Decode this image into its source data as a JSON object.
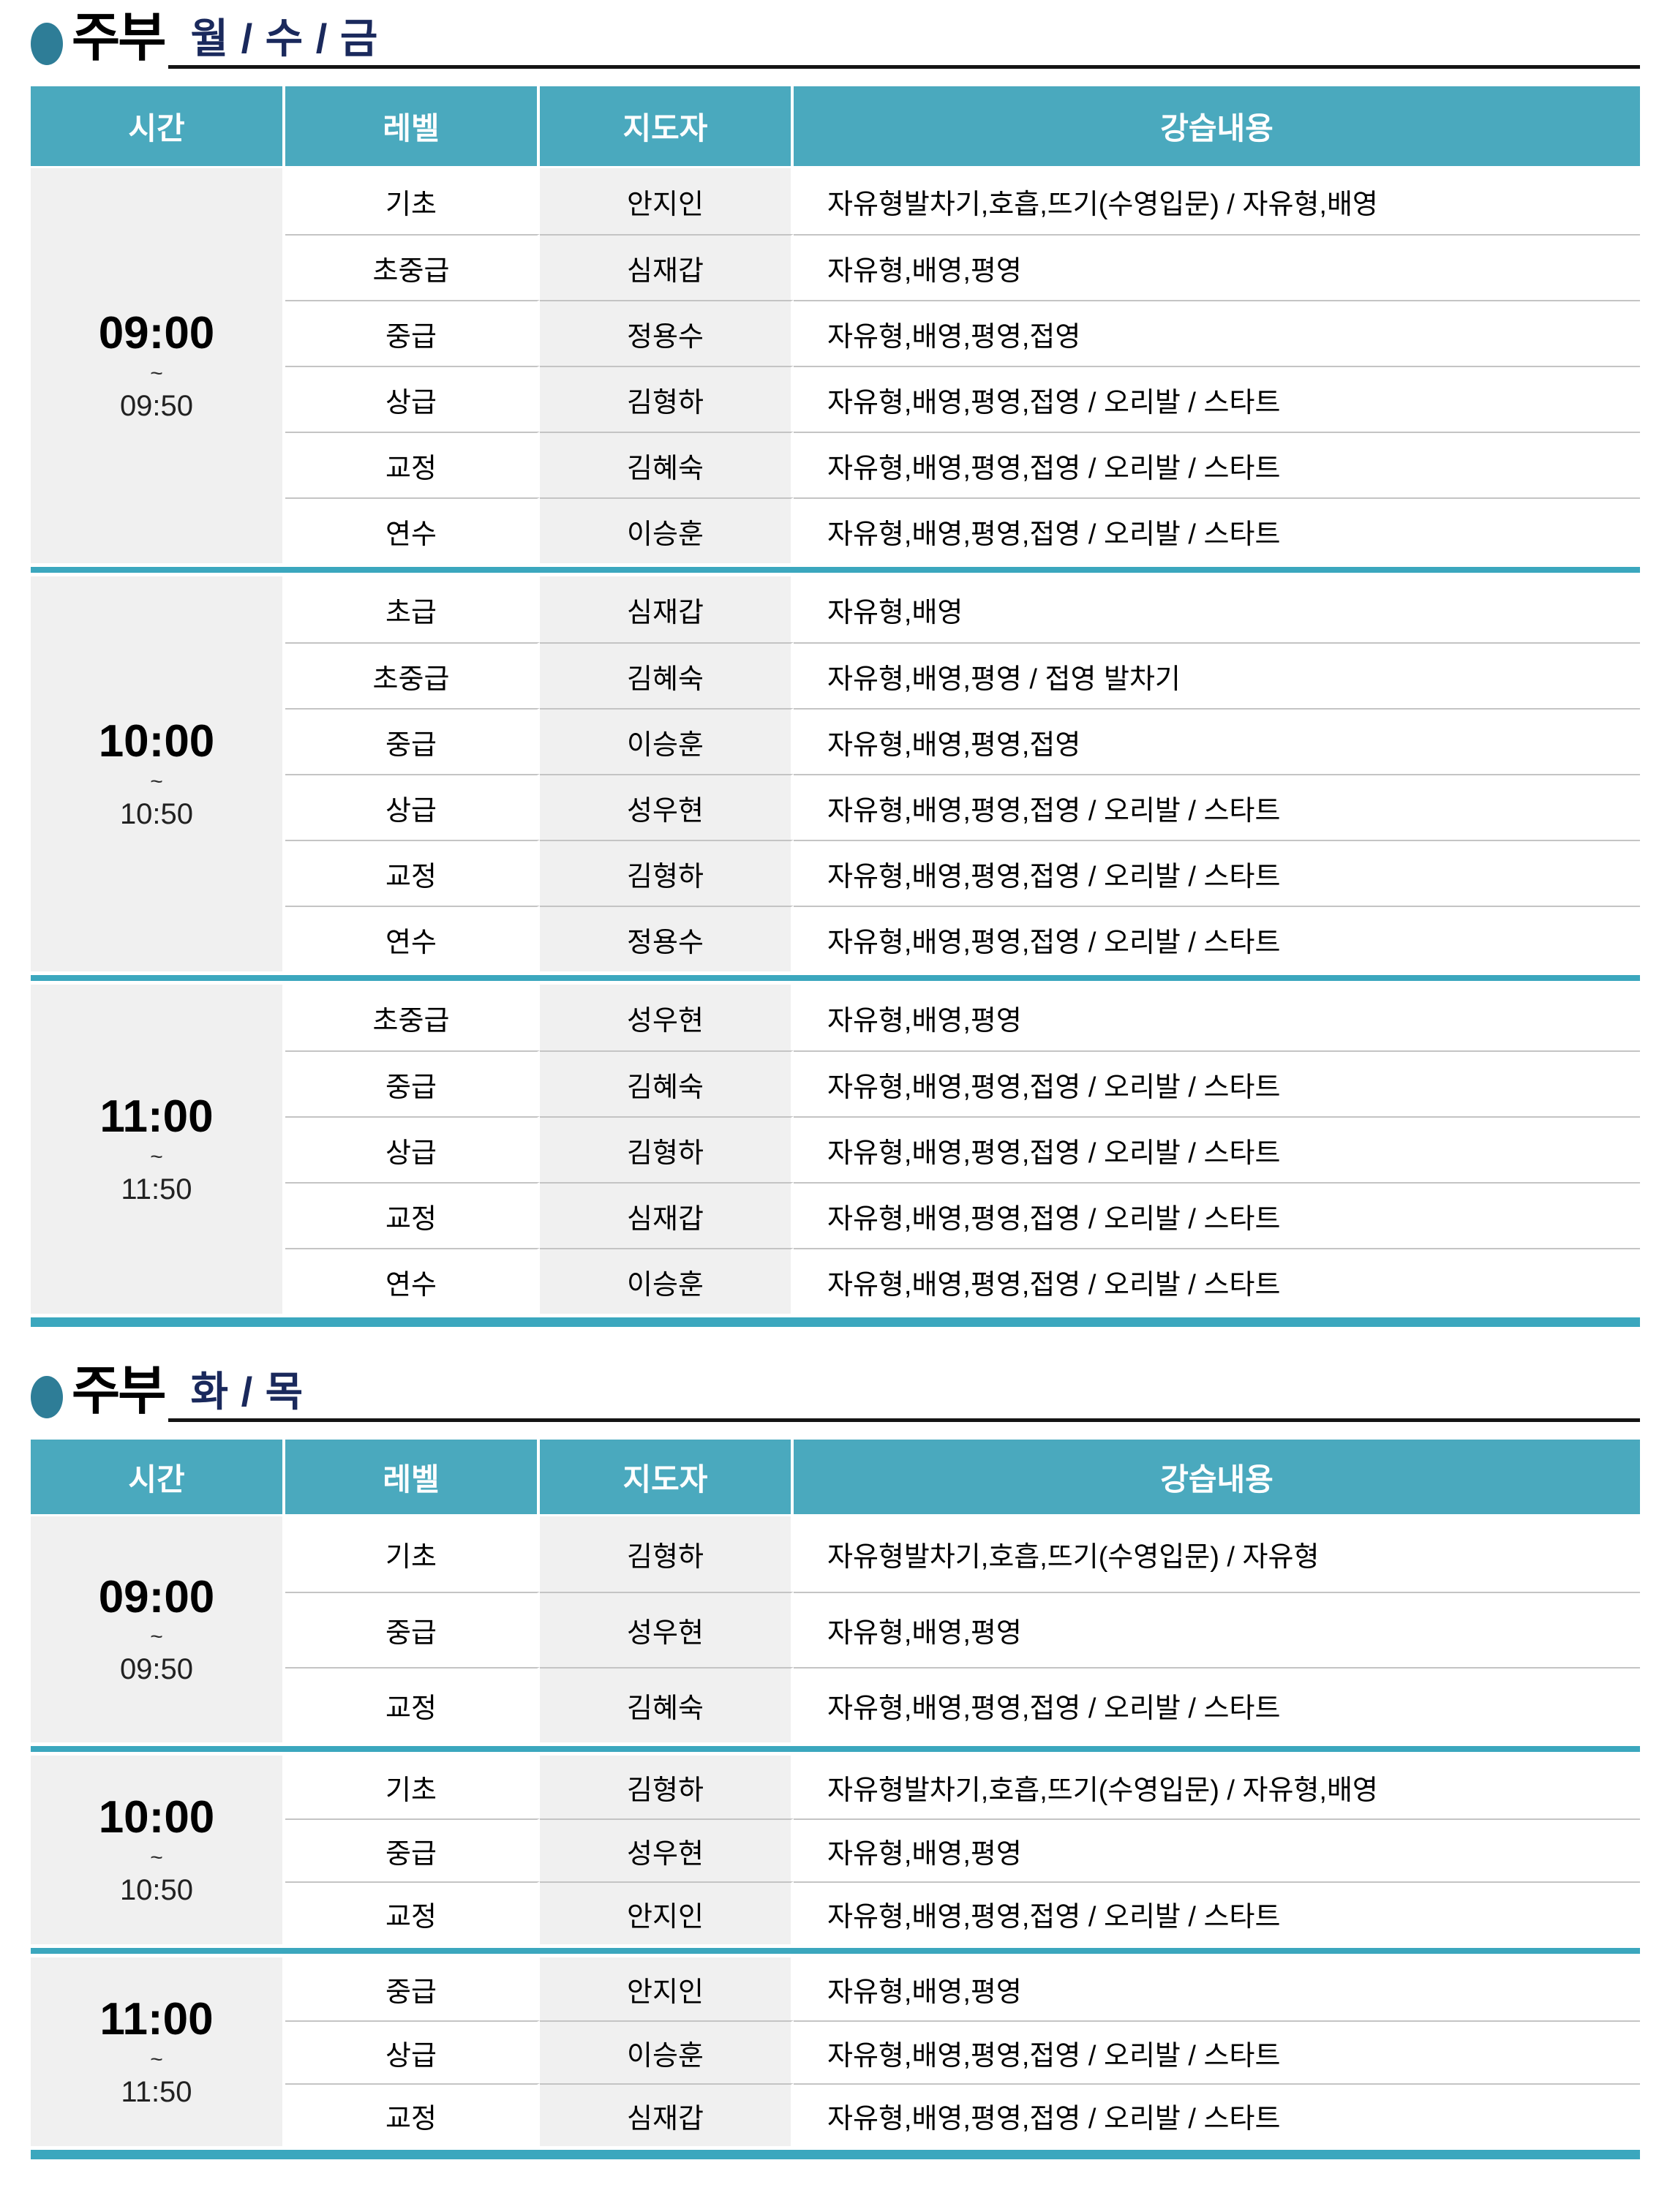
{
  "colors": {
    "header_bg": "#4AA9BE",
    "block_divider_teal": "#3BA7BE",
    "shaded_column_bg": "#F0F0F0",
    "row_divider_gray": "#C4C4C4",
    "title_days_navy": "#1A295C",
    "title_bullet_teal": "#2E7D97",
    "title_underline": "#141414",
    "header_text": "#FFFFFF"
  },
  "tables": [
    {
      "title": "주부",
      "days": "월 / 수 / 금",
      "columns": [
        "시간",
        "레벨",
        "지도자",
        "강습내용"
      ],
      "blocks": [
        {
          "time_start": "09:00",
          "tilde": "~",
          "time_end": "09:50",
          "rows": [
            {
              "level": "기초",
              "instructor": "안지인",
              "content": "자유형발차기,호흡,뜨기(수영입문) / 자유형,배영"
            },
            {
              "level": "초중급",
              "instructor": "심재갑",
              "content": "자유형,배영,평영"
            },
            {
              "level": "중급",
              "instructor": "정용수",
              "content": "자유형,배영,평영,접영"
            },
            {
              "level": "상급",
              "instructor": "김형하",
              "content": "자유형,배영,평영,접영 / 오리발 / 스타트"
            },
            {
              "level": "교정",
              "instructor": "김혜숙",
              "content": "자유형,배영,평영,접영 / 오리발 / 스타트"
            },
            {
              "level": "연수",
              "instructor": "이승훈",
              "content": "자유형,배영,평영,접영 / 오리발 / 스타트"
            }
          ]
        },
        {
          "time_start": "10:00",
          "tilde": "~",
          "time_end": "10:50",
          "rows": [
            {
              "level": "초급",
              "instructor": "심재갑",
              "content": "자유형,배영"
            },
            {
              "level": "초중급",
              "instructor": "김혜숙",
              "content": "자유형,배영,평영 / 접영 발차기"
            },
            {
              "level": "중급",
              "instructor": "이승훈",
              "content": "자유형,배영,평영,접영"
            },
            {
              "level": "상급",
              "instructor": "성우현",
              "content": "자유형,배영,평영,접영 / 오리발 / 스타트"
            },
            {
              "level": "교정",
              "instructor": "김형하",
              "content": "자유형,배영,평영,접영 / 오리발 / 스타트"
            },
            {
              "level": "연수",
              "instructor": "정용수",
              "content": "자유형,배영,평영,접영 / 오리발 / 스타트"
            }
          ]
        },
        {
          "time_start": "11:00",
          "tilde": "~",
          "time_end": "11:50",
          "rows": [
            {
              "level": "초중급",
              "instructor": "성우현",
              "content": "자유형,배영,평영"
            },
            {
              "level": "중급",
              "instructor": "김혜숙",
              "content": "자유형,배영,평영,접영 / 오리발 / 스타트"
            },
            {
              "level": "상급",
              "instructor": "김형하",
              "content": "자유형,배영,평영,접영 / 오리발 / 스타트"
            },
            {
              "level": "교정",
              "instructor": "심재갑",
              "content": "자유형,배영,평영,접영 / 오리발 / 스타트"
            },
            {
              "level": "연수",
              "instructor": "이승훈",
              "content": "자유형,배영,평영,접영 / 오리발 / 스타트"
            }
          ]
        }
      ]
    },
    {
      "title": "주부",
      "days": "화 / 목",
      "columns": [
        "시간",
        "레벨",
        "지도자",
        "강습내용"
      ],
      "blocks": [
        {
          "time_start": "09:00",
          "tilde": "~",
          "time_end": "09:50",
          "rows": [
            {
              "level": "기초",
              "instructor": "김형하",
              "content": "자유형발차기,호흡,뜨기(수영입문) / 자유형"
            },
            {
              "level": "중급",
              "instructor": "성우현",
              "content": "자유형,배영,평영"
            },
            {
              "level": "교정",
              "instructor": "김혜숙",
              "content": "자유형,배영,평영,접영 / 오리발 / 스타트"
            }
          ]
        },
        {
          "time_start": "10:00",
          "tilde": "~",
          "time_end": "10:50",
          "rows": [
            {
              "level": "기초",
              "instructor": "김형하",
              "content": "자유형발차기,호흡,뜨기(수영입문) / 자유형,배영"
            },
            {
              "level": "중급",
              "instructor": "성우현",
              "content": "자유형,배영,평영"
            },
            {
              "level": "교정",
              "instructor": "안지인",
              "content": "자유형,배영,평영,접영 / 오리발 / 스타트"
            }
          ]
        },
        {
          "time_start": "11:00",
          "tilde": "~",
          "time_end": "11:50",
          "rows": [
            {
              "level": "중급",
              "instructor": "안지인",
              "content": "자유형,배영,평영"
            },
            {
              "level": "상급",
              "instructor": "이승훈",
              "content": "자유형,배영,평영,접영 / 오리발 / 스타트"
            },
            {
              "level": "교정",
              "instructor": "심재갑",
              "content": "자유형,배영,평영,접영 / 오리발 / 스타트"
            }
          ]
        }
      ]
    }
  ]
}
